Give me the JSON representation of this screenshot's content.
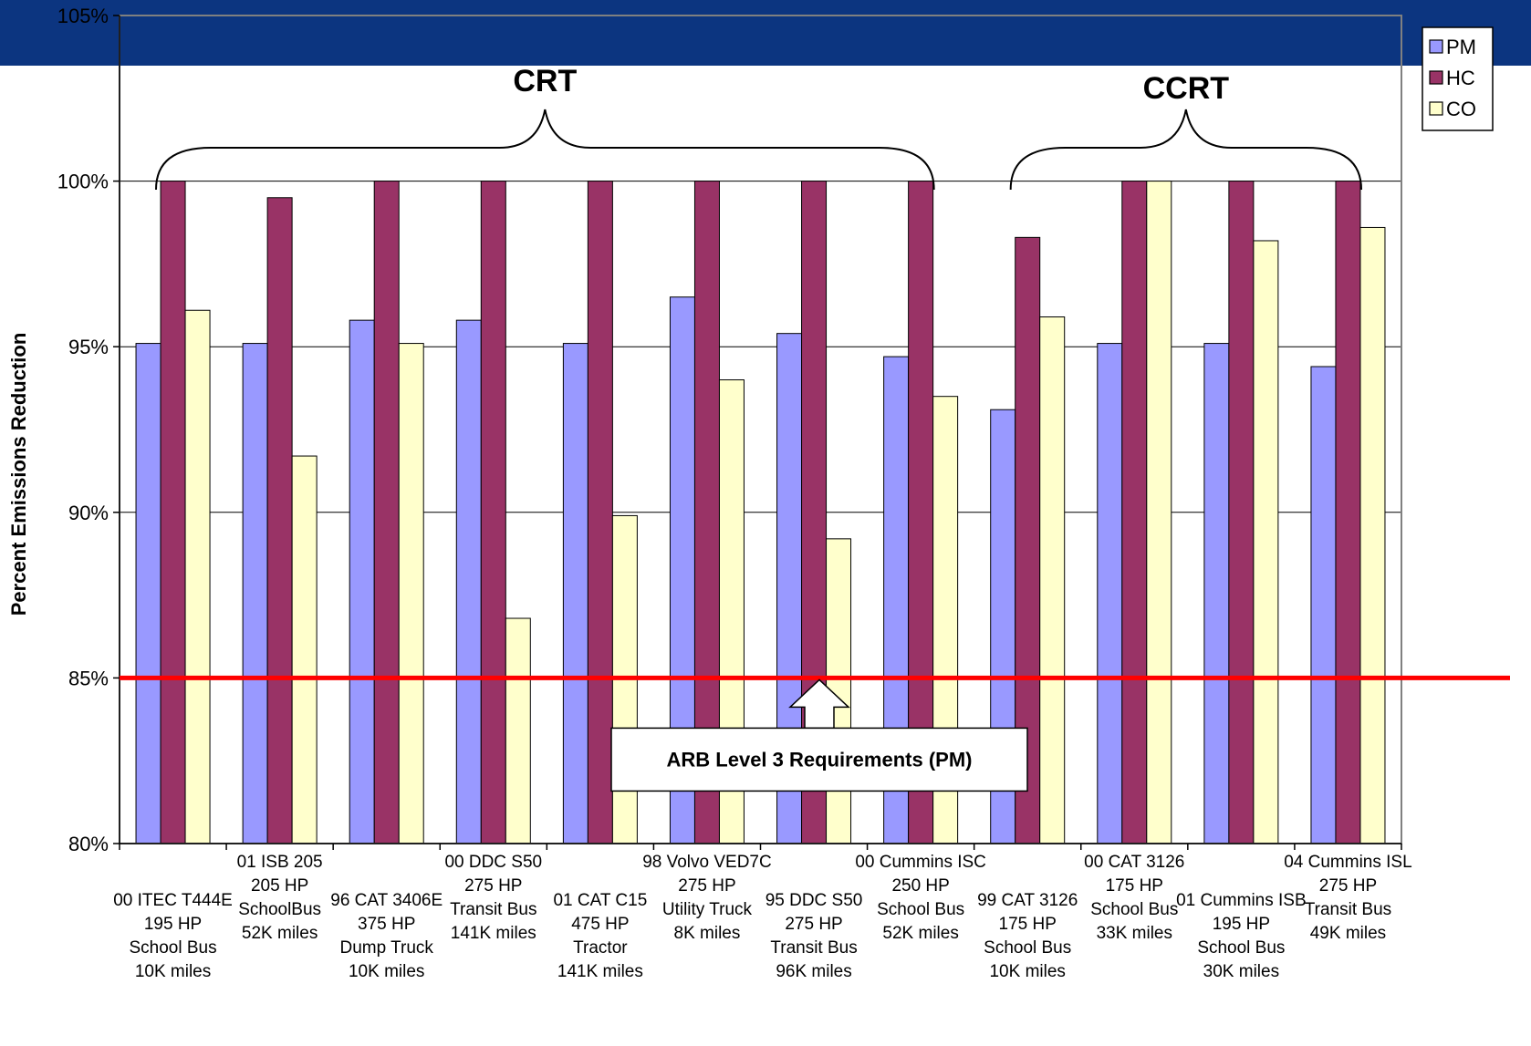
{
  "chart_data": {
    "type": "bar",
    "title": "",
    "xlabel": "",
    "ylabel": "Percent Emissions Reduction",
    "ylim": [
      80,
      105
    ],
    "yticks": [
      "80%",
      "85%",
      "90%",
      "95%",
      "100%",
      "105%"
    ],
    "ytick_values": [
      80,
      85,
      90,
      95,
      100,
      105
    ],
    "grid": true,
    "legend_position": "top-right",
    "categories": [
      [
        "00 ITEC T444E",
        "195 HP",
        "School Bus",
        "10K miles"
      ],
      [
        "01 ISB 205",
        "205 HP",
        "SchoolBus",
        "52K miles"
      ],
      [
        "96 CAT 3406E",
        "375 HP",
        "Dump Truck",
        "10K miles"
      ],
      [
        "00 DDC S50",
        "275 HP",
        "Transit Bus",
        "141K miles"
      ],
      [
        "01 CAT C15",
        "475 HP",
        "Tractor",
        "141K miles"
      ],
      [
        "98 Volvo VED7C",
        "275 HP",
        "Utility Truck",
        "8K miles"
      ],
      [
        "95 DDC S50",
        "275 HP",
        "Transit Bus",
        "96K miles"
      ],
      [
        "00 Cummins ISC",
        "250 HP",
        "School Bus",
        "52K miles"
      ],
      [
        "99 CAT 3126",
        "175 HP",
        "School Bus",
        "10K miles"
      ],
      [
        "00 CAT 3126",
        "175 HP",
        "School Bus",
        "33K miles"
      ],
      [
        "01 Cummins ISB",
        "195 HP",
        "School Bus",
        "30K miles"
      ],
      [
        "04 Cummins ISL",
        "275 HP",
        "Transit Bus",
        "49K miles"
      ]
    ],
    "series": [
      {
        "name": "PM",
        "color": "#9999ff",
        "values": [
          95.1,
          95.1,
          95.8,
          95.8,
          95.1,
          96.5,
          95.4,
          94.7,
          93.1,
          95.1,
          95.1,
          94.4
        ]
      },
      {
        "name": "HC",
        "color": "#993366",
        "values": [
          100,
          99.5,
          100,
          100,
          100,
          100,
          100,
          100,
          98.3,
          100,
          100,
          100
        ]
      },
      {
        "name": "CO",
        "color": "#ffffcc",
        "values": [
          96.1,
          91.7,
          95.1,
          86.8,
          89.9,
          94.0,
          89.2,
          93.5,
          95.9,
          100,
          98.2,
          98.6
        ]
      }
    ],
    "groups": [
      {
        "label": "CRT",
        "from": 0,
        "to": 7
      },
      {
        "label": "CCRT",
        "from": 8,
        "to": 11
      }
    ],
    "reference_line": {
      "value": 85,
      "color": "#ff0000"
    },
    "annotation": {
      "text": "ARB Level 3 Requirements (PM)"
    }
  }
}
